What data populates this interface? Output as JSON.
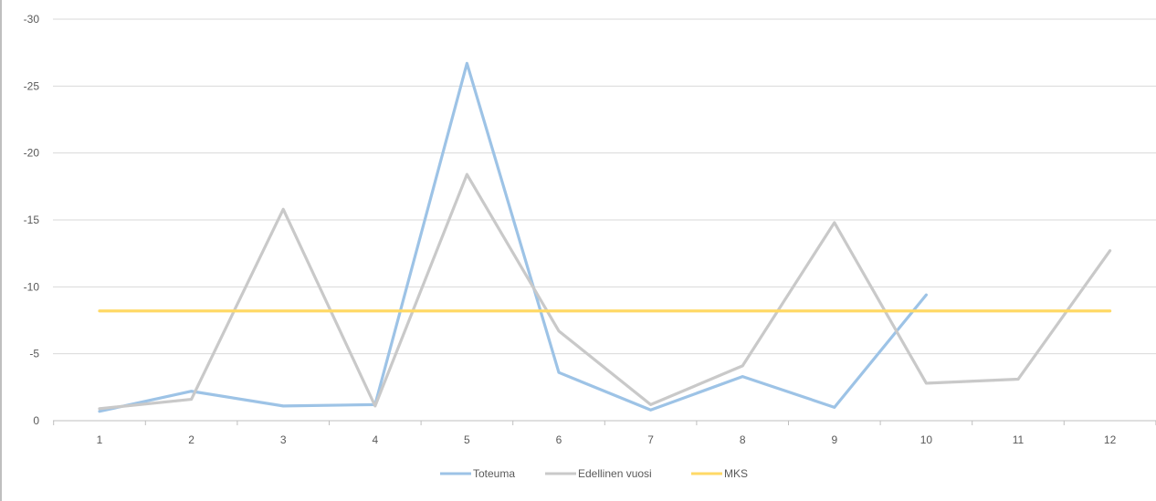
{
  "chart_data": {
    "type": "line",
    "title": "",
    "xlabel": "",
    "ylabel": "",
    "categories": [
      "1",
      "2",
      "3",
      "4",
      "5",
      "6",
      "7",
      "8",
      "9",
      "10",
      "11",
      "12"
    ],
    "y_tick_labels": [
      "0",
      "-5",
      "-10",
      "-15",
      "-20",
      "-25",
      "-30"
    ],
    "y_tick_values": [
      0,
      5,
      10,
      15,
      20,
      25,
      30
    ],
    "ylim": [
      0,
      30
    ],
    "y_axis_inverted": true,
    "grid": true,
    "legend_position": "bottom",
    "series": [
      {
        "name": "Toteuma",
        "color": "#9dc3e6",
        "values": [
          0.7,
          2.2,
          1.1,
          1.2,
          26.7,
          3.6,
          0.8,
          3.3,
          1.0,
          9.4,
          null,
          null
        ]
      },
      {
        "name": "Edellinen vuosi",
        "color": "#c9c9c9",
        "values": [
          0.9,
          1.6,
          15.8,
          1.1,
          18.4,
          6.7,
          1.2,
          4.1,
          14.8,
          2.8,
          3.1,
          12.7
        ]
      },
      {
        "name": "MKS",
        "color": "#ffd966",
        "values": [
          8.2,
          8.2,
          8.2,
          8.2,
          8.2,
          8.2,
          8.2,
          8.2,
          8.2,
          8.2,
          8.2,
          8.2
        ]
      }
    ]
  }
}
